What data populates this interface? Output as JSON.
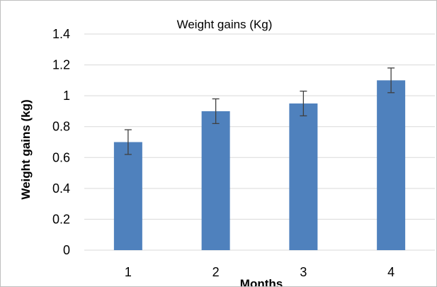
{
  "chart_data": {
    "type": "bar",
    "title": "Weight gains (Kg)",
    "xlabel": "Months",
    "ylabel": "Weight gains (kg)",
    "categories": [
      "1",
      "2",
      "3",
      "4"
    ],
    "values": [
      0.7,
      0.9,
      0.95,
      1.1
    ],
    "error": [
      0.08,
      0.08,
      0.08,
      0.08
    ],
    "ylim": [
      0,
      1.4
    ],
    "yticks": [
      "0",
      "0.2",
      "0.4",
      "0.6",
      "0.8",
      "1",
      "1.2",
      "1.4"
    ],
    "ytick_values": [
      0,
      0.2,
      0.4,
      0.6,
      0.8,
      1.0,
      1.2,
      1.4
    ],
    "grid": true,
    "legend": "none",
    "bar_color": "#4f81bd",
    "error_color": "#404040",
    "grid_color": "#d9d9d9"
  }
}
